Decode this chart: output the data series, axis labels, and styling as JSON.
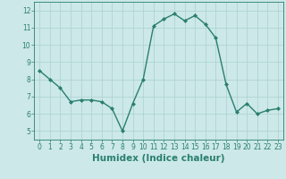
{
  "x": [
    0,
    1,
    2,
    3,
    4,
    5,
    6,
    7,
    8,
    9,
    10,
    11,
    12,
    13,
    14,
    15,
    16,
    17,
    18,
    19,
    20,
    21,
    22,
    23
  ],
  "y": [
    8.5,
    8.0,
    7.5,
    6.7,
    6.8,
    6.8,
    6.7,
    6.3,
    5.0,
    6.6,
    8.0,
    11.1,
    11.5,
    11.8,
    11.4,
    11.7,
    11.2,
    10.4,
    7.7,
    6.1,
    6.6,
    6.0,
    6.2,
    6.3
  ],
  "line_color": "#2a7f6f",
  "marker": "D",
  "marker_size": 2.0,
  "line_width": 1.0,
  "bg_color": "#cce8e8",
  "grid_color": "#aad0d0",
  "xlabel": "Humidex (Indice chaleur)",
  "ylabel": "",
  "xlim": [
    -0.5,
    23.5
  ],
  "ylim": [
    4.5,
    12.5
  ],
  "yticks": [
    5,
    6,
    7,
    8,
    9,
    10,
    11,
    12
  ],
  "xticks": [
    0,
    1,
    2,
    3,
    4,
    5,
    6,
    7,
    8,
    9,
    10,
    11,
    12,
    13,
    14,
    15,
    16,
    17,
    18,
    19,
    20,
    21,
    22,
    23
  ],
  "tick_fontsize": 5.5,
  "xlabel_fontsize": 7.5,
  "title": ""
}
